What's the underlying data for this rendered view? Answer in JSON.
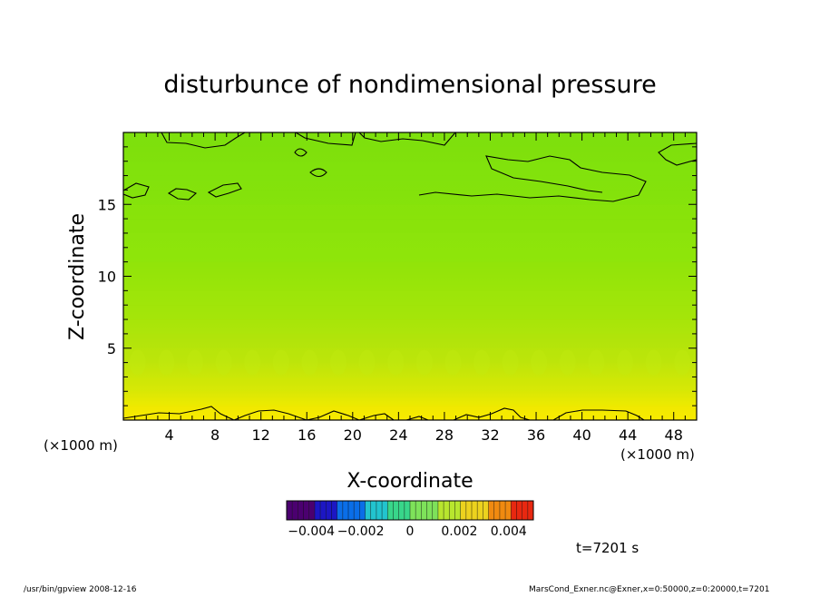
{
  "chart_data": {
    "type": "heatmap",
    "title": "disturbunce of nondimensional pressure",
    "xlabel": "X-coordinate",
    "ylabel": "Z-coordinate",
    "x_unit_label": "(×1000 m)",
    "y_unit_label": "(×1000 m)",
    "xlim": [
      0,
      50
    ],
    "ylim": [
      0,
      20
    ],
    "x_ticks": [
      4,
      8,
      12,
      16,
      20,
      24,
      28,
      32,
      36,
      40,
      44,
      48
    ],
    "y_ticks": [
      5,
      10,
      15
    ],
    "grid": false,
    "colorbar": {
      "range": [
        -0.005,
        0.005
      ],
      "tick_values": [
        -0.004,
        -0.002,
        0,
        0.002,
        0.004
      ],
      "tick_labels": [
        "−0.004",
        "−0.002",
        "0",
        "0.002",
        "0.004"
      ],
      "colors": [
        "#4b0070",
        "#1c16c4",
        "#0a6ee8",
        "#22c4cf",
        "#38d68a",
        "#7ee25a",
        "#b8e62e",
        "#ecd21e",
        "#f08a10",
        "#e82810"
      ]
    },
    "field_rows": [
      {
        "z": 0.5,
        "value": 0.0011
      },
      {
        "z": 1.5,
        "value": 0.0009
      },
      {
        "z": 2.5,
        "value": 0.0007
      },
      {
        "z": 3.5,
        "value": 0.0006
      },
      {
        "z": 4.5,
        "value": 0.0005
      },
      {
        "z": 5.5,
        "value": 0.0004
      },
      {
        "z": 6.5,
        "value": 0.0003
      },
      {
        "z": 7.5,
        "value": 0.0002
      },
      {
        "z": 8.5,
        "value": 0.0002
      },
      {
        "z": 9.5,
        "value": 0.0001
      },
      {
        "z": 10.5,
        "value": 0.0001
      },
      {
        "z": 11.5,
        "value": 0.0
      },
      {
        "z": 12.5,
        "value": 0.0
      },
      {
        "z": 13.5,
        "value": -0.0001
      },
      {
        "z": 14.5,
        "value": -0.0001
      },
      {
        "z": 15.5,
        "value": -0.0002
      },
      {
        "z": 16.5,
        "value": -0.0002
      },
      {
        "z": 17.5,
        "value": -0.0002
      },
      {
        "z": 18.5,
        "value": -0.0003
      },
      {
        "z": 19.5,
        "value": -0.0003
      }
    ],
    "contour_levels_shown": [
      0.001,
      -0.0005
    ]
  },
  "annotations": {
    "time": "t=7201 s",
    "footer_left": "/usr/bin/gpview   2008-12-16",
    "footer_right": "MarsCond_Exner.nc@Exner,x=0:50000,z=0:20000,t=7201"
  }
}
